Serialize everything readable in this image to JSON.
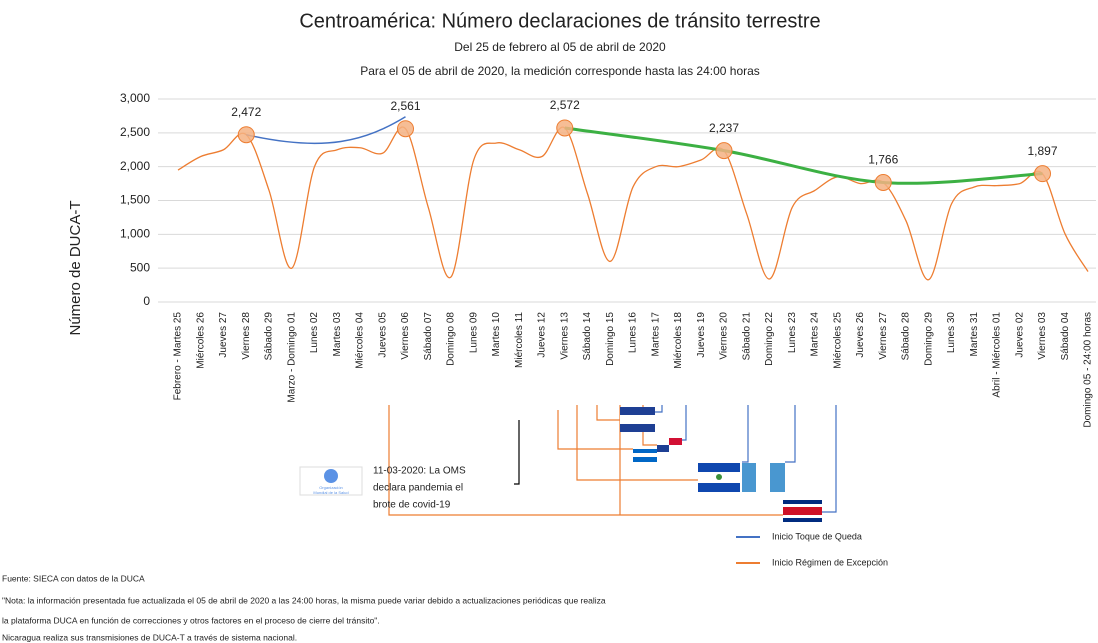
{
  "chart_data": {
    "type": "line",
    "title": "Centroamérica: Número declaraciones de tránsito terrestre",
    "subtitle": "Del 25 de febrero al 05 de abril de 2020",
    "note": "Para el 05 de abril de 2020, la medición corresponde hasta las 24:00 horas",
    "y_label": "Número de  DUCA-T",
    "categories": [
      "Febrero - Martes 25",
      "Miércoles 26",
      "Jueves 27",
      "Viernes 28",
      "Sábado 29",
      "Marzo - Domingo 01",
      "Lunes 02",
      "Martes 03",
      "Miércoles 04",
      "Jueves 05",
      "Viernes 06",
      "Sábado 07",
      "Domingo 08",
      "Lunes 09",
      "Martes 10",
      "Miércoles 11",
      "Jueves 12",
      "Viernes 13",
      "Sábado 14",
      "Domingo 15",
      "Lunes 16",
      "Martes 17",
      "Miércoles 18",
      "Jueves 19",
      "Viernes 20",
      "Sábado 21",
      "Domingo 22",
      "Lunes 23",
      "Martes 24",
      "Miércoles 25",
      "Jueves 26",
      "Viernes 27",
      "Sábado 28",
      "Domingo 29",
      "Lunes 30",
      "Martes 31",
      "Abril - Miércoles 01",
      "Jueves 02",
      "Viernes 03",
      "Sábado 04",
      "Domingo 05 - 24:00 horas"
    ],
    "values": [
      1950,
      2150,
      2250,
      2472,
      1650,
      500,
      2000,
      2250,
      2280,
      2200,
      2561,
      1400,
      370,
      2100,
      2350,
      2250,
      2150,
      2572,
      1600,
      600,
      1700,
      2000,
      2000,
      2100,
      2237,
      1300,
      340,
      1400,
      1650,
      1850,
      1750,
      1766,
      1200,
      330,
      1450,
      1700,
      1720,
      1750,
      1897,
      1000,
      450
    ],
    "value_labels": [
      null,
      null,
      null,
      "2,472",
      null,
      null,
      null,
      null,
      null,
      null,
      "2,561",
      null,
      null,
      null,
      null,
      null,
      null,
      "2,572",
      null,
      null,
      null,
      null,
      null,
      null,
      "2,237",
      null,
      null,
      null,
      null,
      null,
      null,
      "1,766",
      null,
      null,
      null,
      null,
      null,
      null,
      "1,897",
      null,
      null
    ],
    "color": "#ed7d31",
    "trend_lines": [
      {
        "color": "#4472c4",
        "points": [
          3,
          10
        ]
      },
      {
        "color": "#3cb043",
        "points": [
          17,
          24,
          31,
          38
        ]
      }
    ],
    "ylim": [
      0,
      3000
    ],
    "yticks": [
      {
        "value": 0,
        "label": "0"
      },
      {
        "value": 500,
        "label": "500"
      },
      {
        "value": 1000,
        "label": "1,000"
      },
      {
        "value": 1500,
        "label": "1,500"
      },
      {
        "value": 2000,
        "label": "2,000"
      },
      {
        "value": 2500,
        "label": "2,500"
      },
      {
        "value": 3000,
        "label": "3,000"
      }
    ],
    "grid": true,
    "annotation": [
      "11-03-2020: La OMS",
      "declara pandemia el",
      "brote de covid-19"
    ],
    "logo_text": [
      "Organización",
      "Mundial de la Salud"
    ],
    "legend": [
      {
        "name": "Inicio Toque de Queda",
        "color": "#4472c4"
      },
      {
        "name": "Inicio Régimen de Excepción",
        "color": "#ed7d31"
      }
    ],
    "footer": [
      "Fuente: SIECA con datos de la DUCA",
      "\"Nota: la información presentada fue actualizada el 05 de abril de 2020 a las 24:00 horas, la misma puede variar debido a actualizaciones periódicas que realiza",
      "la plataforma DUCA en función de correcciones y otros factores en el proceso de cierre del tránsito\".",
      "Nicaragua realiza sus transmisiones de DUCA-T a través de sistema nacional."
    ]
  }
}
